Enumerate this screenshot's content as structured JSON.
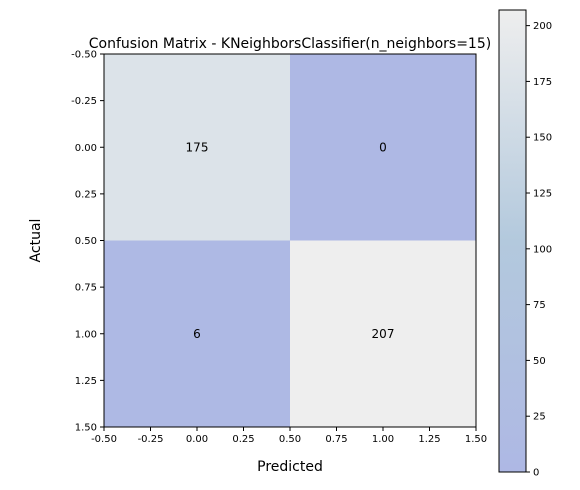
{
  "chart_data": {
    "type": "heatmap",
    "title": "Confusion Matrix - KNeighborsClassifier(n_neighbors=15)",
    "xlabel": "Predicted",
    "ylabel": "Actual",
    "matrix": [
      [
        175,
        0
      ],
      [
        6,
        207
      ]
    ],
    "xlim": [
      -0.5,
      1.5
    ],
    "ylim": [
      -0.5,
      1.5
    ],
    "x_ticks": [
      "-0.50",
      "-0.25",
      "0.00",
      "0.25",
      "0.50",
      "0.75",
      "1.00",
      "1.25",
      "1.50"
    ],
    "y_ticks": [
      "-0.50",
      "-0.25",
      "0.00",
      "0.25",
      "0.50",
      "0.75",
      "1.00",
      "1.25",
      "1.50"
    ],
    "colorbar": {
      "range": [
        0,
        207
      ],
      "ticks": [
        "0",
        "25",
        "50",
        "75",
        "100",
        "125",
        "150",
        "175",
        "200"
      ],
      "colors": [
        "#aeb8e4",
        "#b3c9dd",
        "#eeeeee"
      ]
    },
    "grid": false,
    "y_axis_inverted": true
  }
}
